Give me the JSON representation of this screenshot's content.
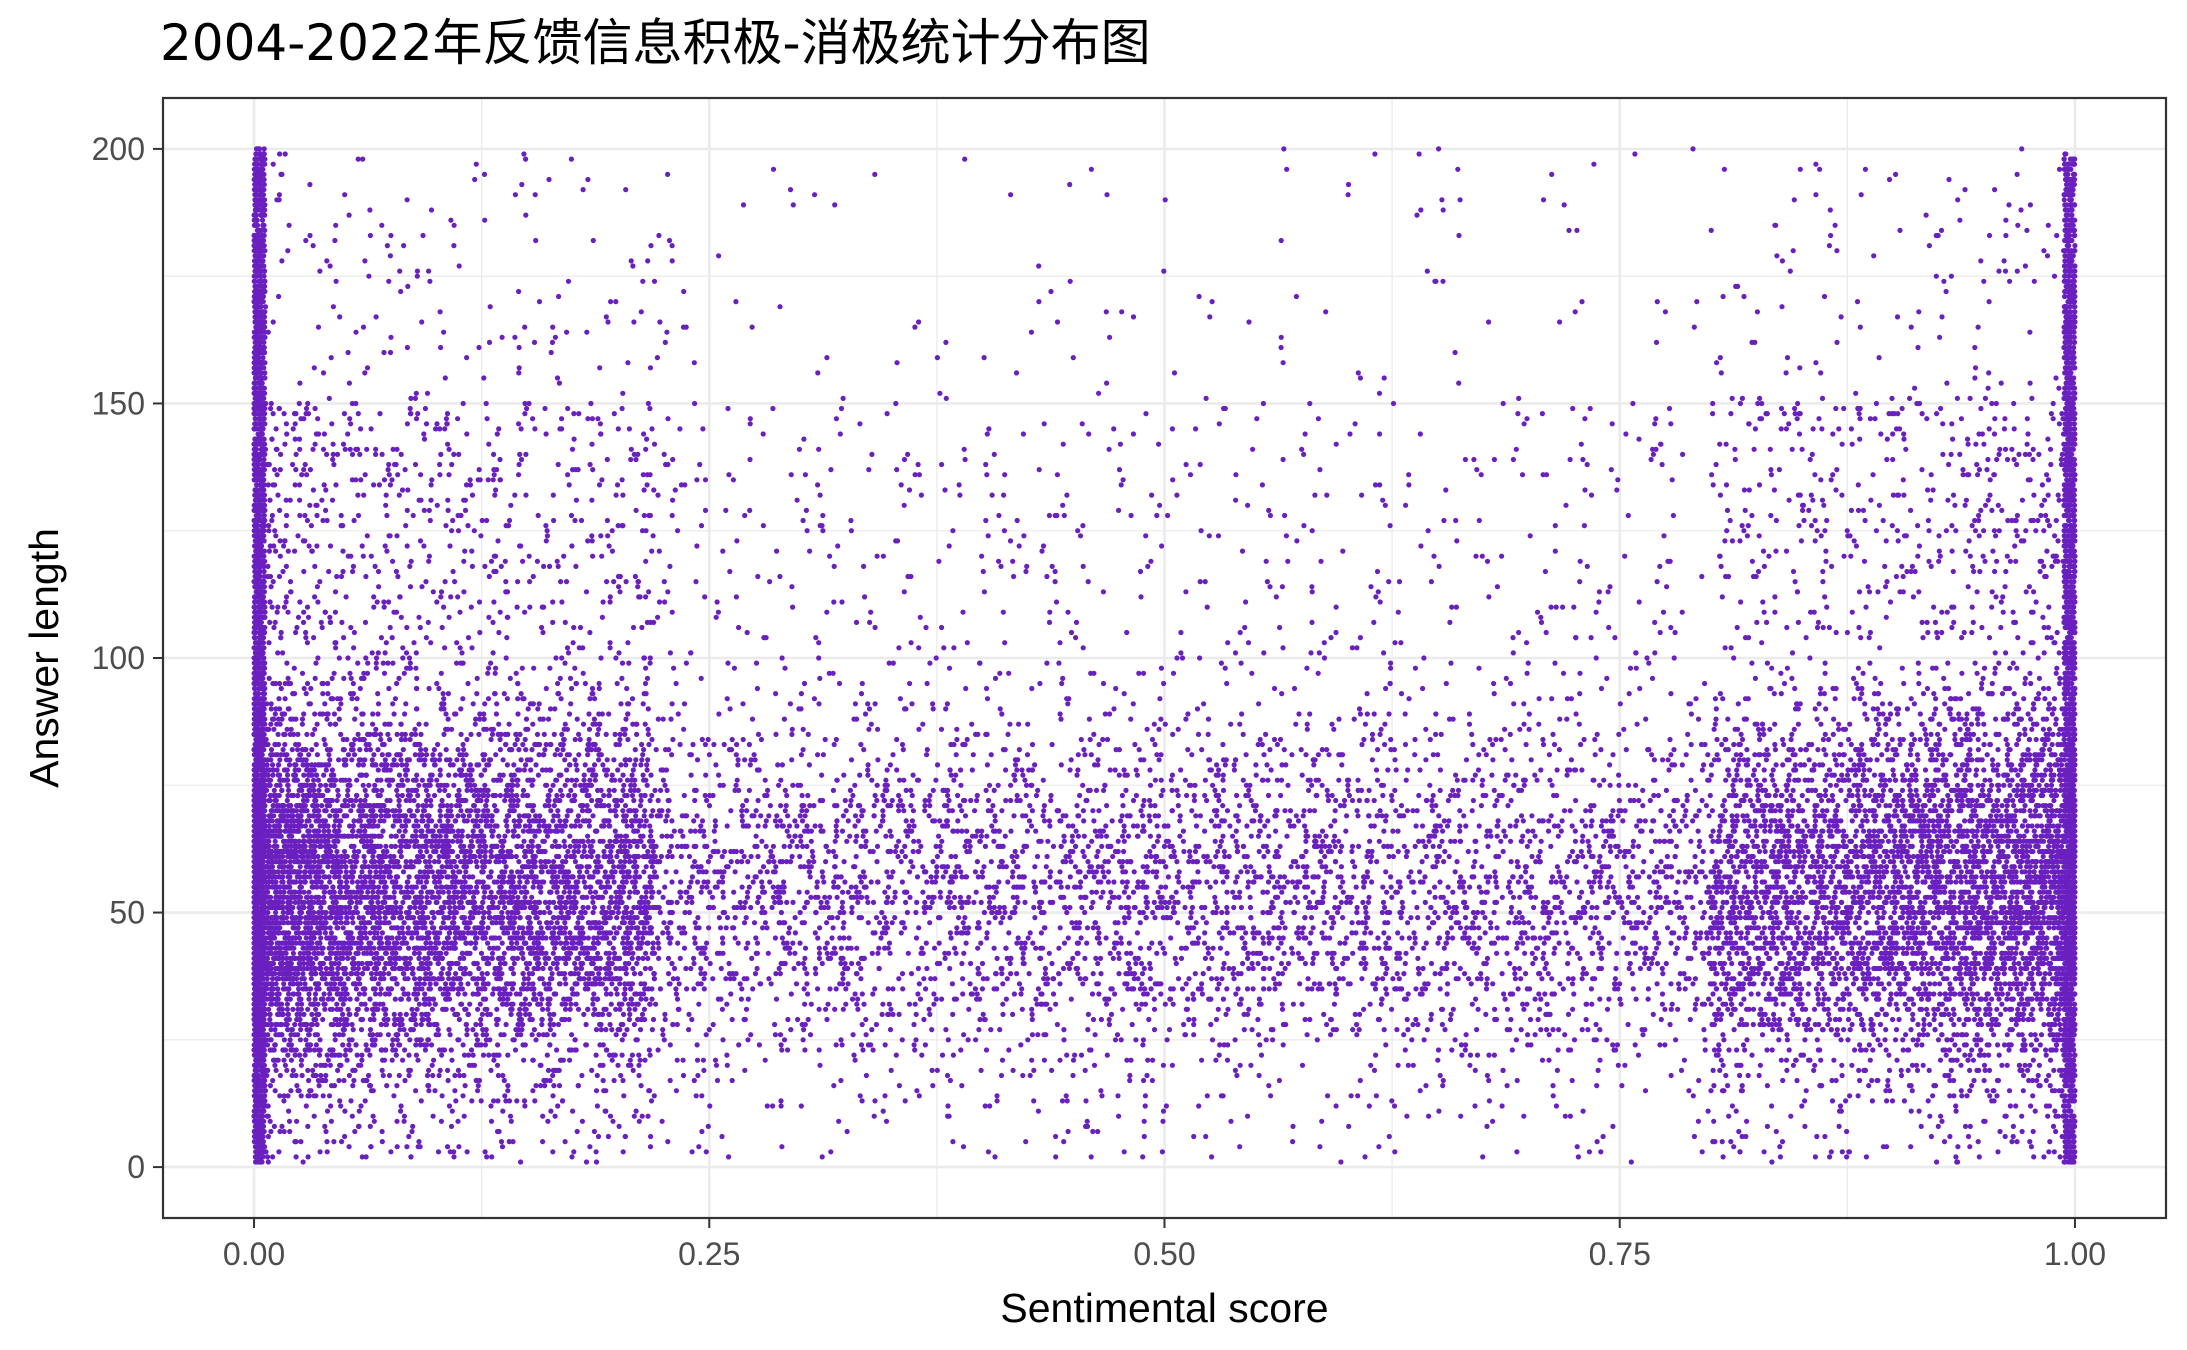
{
  "chart_data": {
    "type": "scatter",
    "title": "2004-2022年反馈信息积极-消极统计分布图",
    "xlabel": "Sentimental score",
    "ylabel": "Answer length",
    "xlim": [
      -0.05,
      1.05
    ],
    "ylim": [
      -10,
      210
    ],
    "x_ticks": [
      0,
      0.25,
      0.5,
      0.75,
      1
    ],
    "x_tick_labels": [
      "0.00",
      "0.25",
      "0.50",
      "0.75",
      "1.00"
    ],
    "y_ticks": [
      0,
      50,
      100,
      150,
      200
    ],
    "y_tick_labels": [
      "0",
      "50",
      "100",
      "150",
      "200"
    ],
    "grid": true,
    "legend": "none",
    "point_color": "#6a1fbf",
    "x_range": [
      0,
      1
    ],
    "y_range": [
      1,
      200
    ],
    "density_profile": [
      {
        "x_bin": "0.00-0.01",
        "relative_density": "very high"
      },
      {
        "x_bin": "0.01-0.10",
        "relative_density": "high"
      },
      {
        "x_bin": "0.10-0.90",
        "relative_density": "moderate"
      },
      {
        "x_bin": "0.90-0.99",
        "relative_density": "high"
      },
      {
        "x_bin": "0.99-1.00",
        "relative_density": "very high"
      }
    ],
    "y_concentration": "most points between 10 and 80, sparse above 150"
  }
}
